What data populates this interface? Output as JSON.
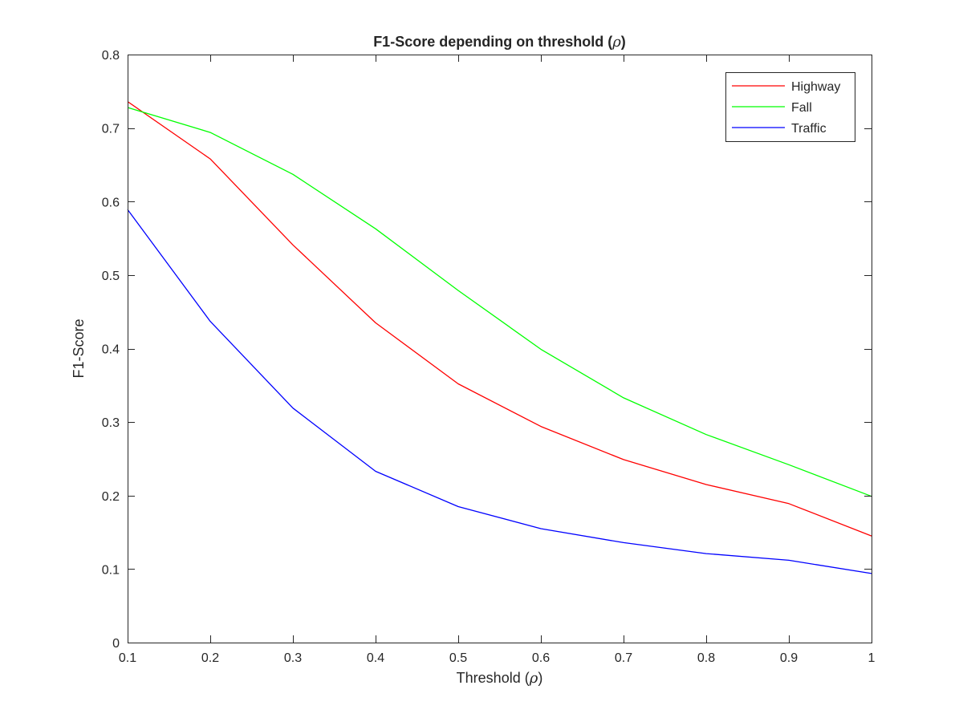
{
  "chart_data": {
    "type": "line",
    "title": {
      "pre": "F1-Score depending on threshold (",
      "symbol": "ρ",
      "post": ")"
    },
    "xlabel": {
      "pre": "Threshold (",
      "symbol": "ρ",
      "post": ")"
    },
    "ylabel": "F1-Score",
    "x": [
      0.1,
      0.2,
      0.3,
      0.4,
      0.5,
      0.6,
      0.7,
      0.8,
      0.9,
      1.0
    ],
    "xlim": [
      0.1,
      1.0
    ],
    "ylim": [
      0,
      0.8
    ],
    "xticks": [
      "0.1",
      "0.2",
      "0.3",
      "0.4",
      "0.5",
      "0.6",
      "0.7",
      "0.8",
      "0.9",
      "1"
    ],
    "yticks": [
      "0",
      "0.1",
      "0.2",
      "0.3",
      "0.4",
      "0.5",
      "0.6",
      "0.7",
      "0.8"
    ],
    "grid": false,
    "legend_position": "top-right",
    "series": [
      {
        "name": "Highway",
        "color": "#ff0000",
        "values": [
          0.736,
          0.658,
          0.541,
          0.435,
          0.352,
          0.294,
          0.249,
          0.215,
          0.189,
          0.145
        ]
      },
      {
        "name": "Fall",
        "color": "#00ff00",
        "values": [
          0.728,
          0.694,
          0.637,
          0.563,
          0.479,
          0.399,
          0.333,
          0.283,
          0.242,
          0.199
        ]
      },
      {
        "name": "Traffic",
        "color": "#0000ff",
        "values": [
          0.589,
          0.437,
          0.319,
          0.233,
          0.185,
          0.155,
          0.136,
          0.121,
          0.112,
          0.094
        ]
      }
    ]
  }
}
